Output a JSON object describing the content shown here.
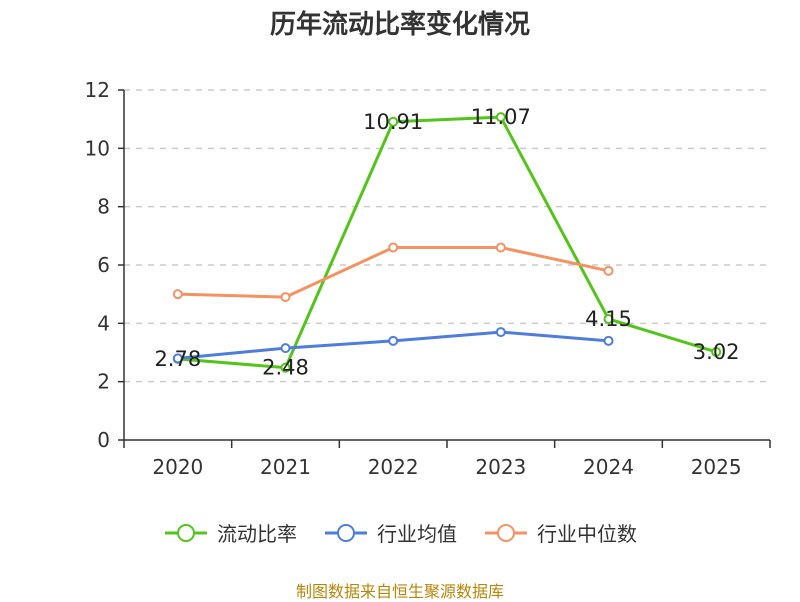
{
  "chart_data": {
    "type": "line",
    "title": "历年流动比率变化情况",
    "categories": [
      "2020",
      "2021",
      "2022",
      "2023",
      "2024",
      "2025"
    ],
    "ylim": [
      0,
      12
    ],
    "yticks": [
      0,
      2,
      4,
      6,
      8,
      10,
      12
    ],
    "grid": true,
    "legend_position": "bottom",
    "series": [
      {
        "name": "流动比率",
        "color": "#52c41a",
        "values": [
          2.78,
          2.48,
          10.91,
          11.07,
          4.15,
          3.02
        ],
        "data_labels": [
          "2.78",
          "2.48",
          "10.91",
          "11.07",
          "4.15",
          "3.02"
        ]
      },
      {
        "name": "行业均值",
        "color": "#4e7ddb",
        "values": [
          2.8,
          3.15,
          3.4,
          3.7,
          3.4,
          null
        ]
      },
      {
        "name": "行业中位数",
        "color": "#f59262",
        "values": [
          5.0,
          4.9,
          6.6,
          6.6,
          5.8,
          null
        ]
      }
    ]
  },
  "source": "制图数据来自恒生聚源数据库"
}
